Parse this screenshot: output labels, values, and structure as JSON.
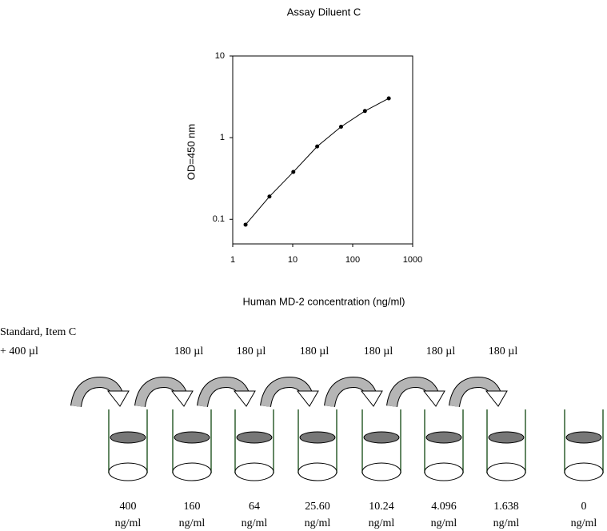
{
  "chart_data": {
    "type": "line",
    "title": "Assay Diluent C",
    "x_label": "Human MD-2 concentration (ng/ml)",
    "y_label": "OD=450 nm",
    "x": [
      1.638,
      4.096,
      10.24,
      25.6,
      64,
      160,
      400
    ],
    "series": [
      {
        "color": "#000000",
        "values": [
          0.086,
          0.19,
          0.38,
          0.78,
          1.36,
          2.12,
          3.03
        ]
      }
    ],
    "xlim": [
      1,
      1000
    ],
    "ylim": [
      0.05,
      10
    ],
    "xticks": [
      1,
      10,
      100,
      1000
    ],
    "yticks": [
      0.1,
      1,
      10
    ],
    "x_log": true,
    "y_log": true
  },
  "diagram": {
    "standard": {
      "label": "Standard, Item C",
      "volume": "+ 400 µl"
    },
    "transfers": [
      "180 µl",
      "180 µl",
      "180 µl",
      "180 µl",
      "180 µl",
      "180 µl"
    ],
    "tubes": [
      {
        "value": "400",
        "unit": "ng/ml"
      },
      {
        "value": "160",
        "unit": "ng/ml"
      },
      {
        "value": "64",
        "unit": "ng/ml"
      },
      {
        "value": "25.60",
        "unit": "ng/ml"
      },
      {
        "value": "10.24",
        "unit": "ng/ml"
      },
      {
        "value": "4.096",
        "unit": "ng/ml"
      },
      {
        "value": "1.638",
        "unit": "ng/ml"
      },
      {
        "value": "0",
        "unit": "ng/ml"
      }
    ]
  }
}
